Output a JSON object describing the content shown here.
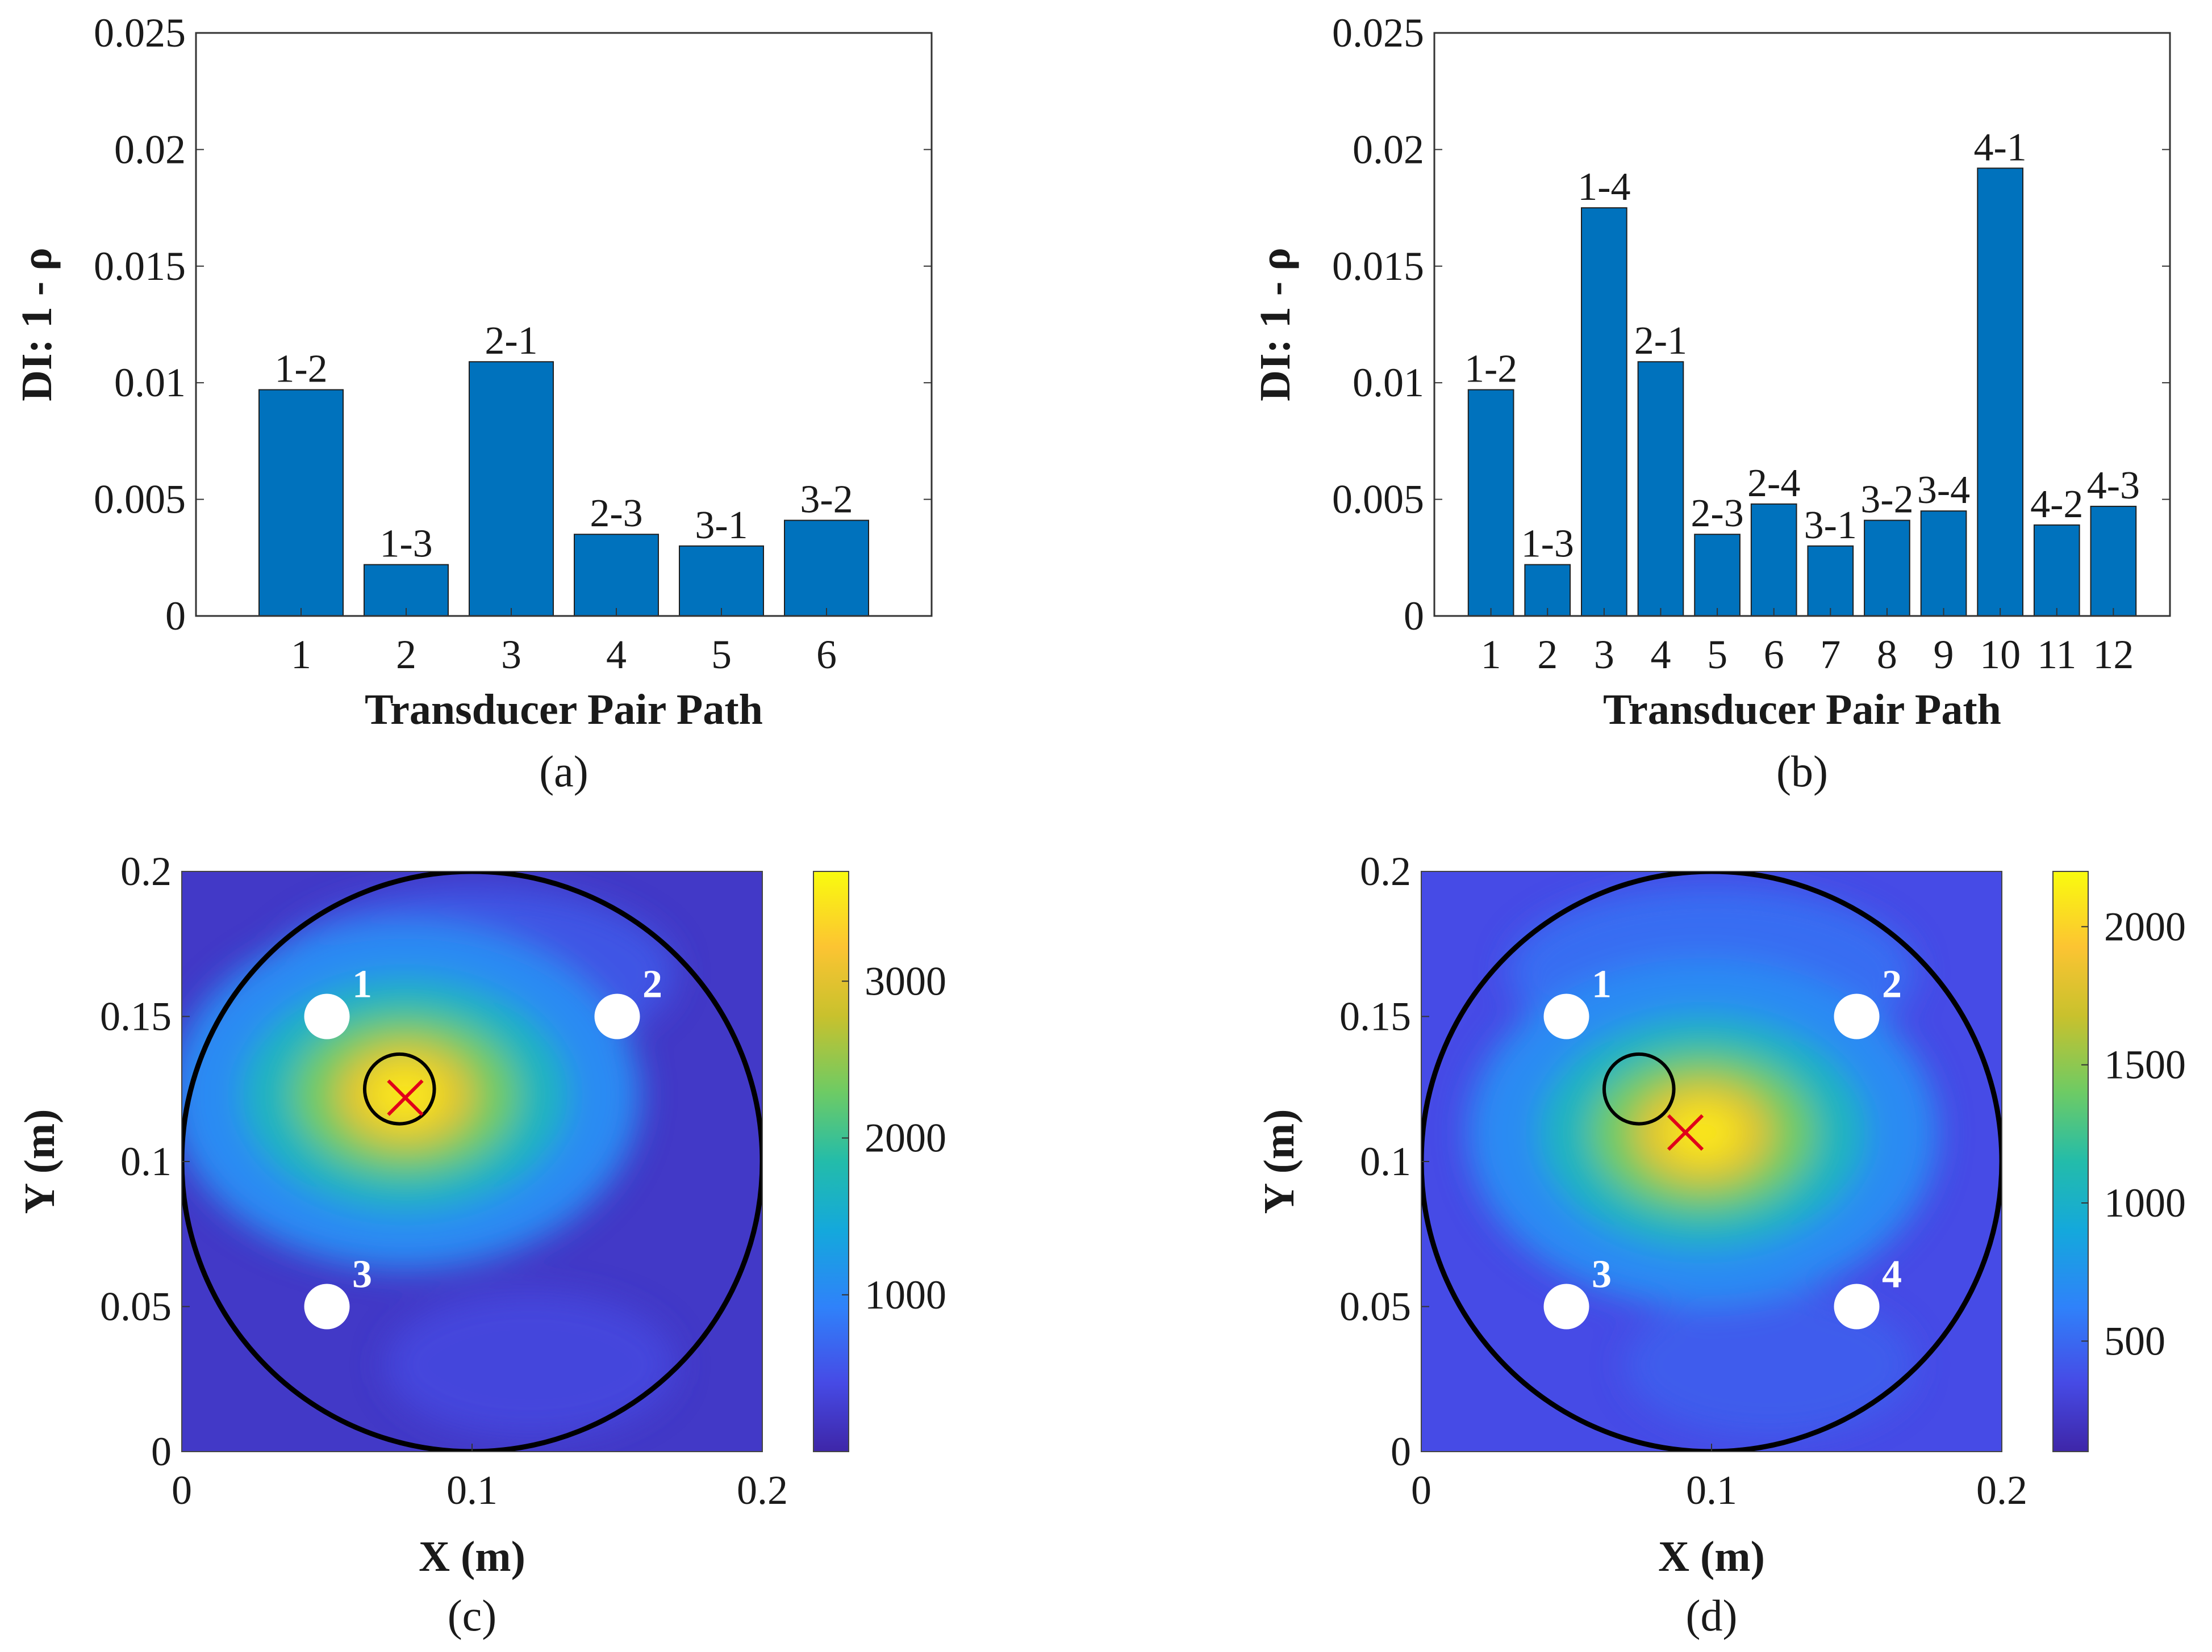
{
  "colors": {
    "bar": "#0072BD",
    "heat_low": "#3e26a8",
    "heat_mid": "#23b7a8",
    "heat_high": "#f9fb0e",
    "marker": "#e0001a",
    "ring": "#000000",
    "transducer": "#ffffff"
  },
  "chart_data": [
    {
      "panel": "a",
      "caption": "(a)",
      "type": "bar",
      "xlabel": "Transducer Pair Path",
      "ylabel": "DI: 1 - ρ",
      "ylim": [
        0,
        0.025
      ],
      "yticks": [
        "0",
        "0.005",
        "0.01",
        "0.015",
        "0.02",
        "0.025"
      ],
      "categories": [
        "1",
        "2",
        "3",
        "4",
        "5",
        "6"
      ],
      "values": [
        0.0097,
        0.0022,
        0.0109,
        0.0035,
        0.003,
        0.0041
      ],
      "bar_labels": [
        "1-2",
        "1-3",
        "2-1",
        "2-3",
        "3-1",
        "3-2"
      ]
    },
    {
      "panel": "b",
      "caption": "(b)",
      "type": "bar",
      "xlabel": "Transducer Pair Path",
      "ylabel": "DI: 1 - ρ",
      "ylim": [
        0,
        0.025
      ],
      "yticks": [
        "0",
        "0.005",
        "0.01",
        "0.015",
        "0.02",
        "0.025"
      ],
      "categories": [
        "1",
        "2",
        "3",
        "4",
        "5",
        "6",
        "7",
        "8",
        "9",
        "10",
        "11",
        "12"
      ],
      "values": [
        0.0097,
        0.0022,
        0.0175,
        0.0109,
        0.0035,
        0.0048,
        0.003,
        0.0041,
        0.0045,
        0.0192,
        0.0039,
        0.0047
      ],
      "bar_labels": [
        "1-2",
        "1-3",
        "1-4",
        "2-1",
        "2-3",
        "2-4",
        "3-1",
        "3-2",
        "3-4",
        "4-1",
        "4-2",
        "4-3"
      ]
    },
    {
      "panel": "c",
      "caption": "(c)",
      "type": "heatmap",
      "xlabel": "X (m)",
      "ylabel": "Y (m)",
      "xlim": [
        0,
        0.2
      ],
      "ylim": [
        0,
        0.2
      ],
      "xticks": [
        "0",
        "0.1",
        "0.2"
      ],
      "yticks": [
        "0",
        "0.05",
        "0.1",
        "0.15",
        "0.2"
      ],
      "colorbar": {
        "range": [
          0,
          3700
        ],
        "ticks": [
          "1000",
          "2000",
          "3000"
        ],
        "tick_values": [
          1000,
          2000,
          3000
        ]
      },
      "plate_circle": {
        "cx": 0.1,
        "cy": 0.1,
        "r": 0.1
      },
      "transducers": [
        {
          "label": "1",
          "x": 0.05,
          "y": 0.15
        },
        {
          "label": "2",
          "x": 0.15,
          "y": 0.15
        },
        {
          "label": "3",
          "x": 0.05,
          "y": 0.05
        }
      ],
      "actual_damage": {
        "x": 0.075,
        "y": 0.125,
        "r": 0.012
      },
      "estimated_damage": {
        "x": 0.077,
        "y": 0.122
      },
      "hotspot": {
        "x": 0.077,
        "y": 0.123,
        "peak": 3700
      }
    },
    {
      "panel": "d",
      "caption": "(d)",
      "type": "heatmap",
      "xlabel": "X (m)",
      "ylabel": "Y (m)",
      "xlim": [
        0,
        0.2
      ],
      "ylim": [
        0,
        0.2
      ],
      "xticks": [
        "0",
        "0.1",
        "0.2"
      ],
      "yticks": [
        "0",
        "0.05",
        "0.1",
        "0.15",
        "0.2"
      ],
      "colorbar": {
        "range": [
          100,
          2200
        ],
        "ticks": [
          "500",
          "1000",
          "1500",
          "2000"
        ],
        "tick_values": [
          500,
          1000,
          1500,
          2000
        ]
      },
      "plate_circle": {
        "cx": 0.1,
        "cy": 0.1,
        "r": 0.1
      },
      "transducers": [
        {
          "label": "1",
          "x": 0.05,
          "y": 0.15
        },
        {
          "label": "2",
          "x": 0.15,
          "y": 0.15
        },
        {
          "label": "3",
          "x": 0.05,
          "y": 0.05
        },
        {
          "label": "4",
          "x": 0.15,
          "y": 0.05
        }
      ],
      "actual_damage": {
        "x": 0.075,
        "y": 0.125,
        "r": 0.012
      },
      "estimated_damage": {
        "x": 0.091,
        "y": 0.11
      },
      "hotspot": {
        "x": 0.097,
        "y": 0.11,
        "peak": 2200
      }
    }
  ]
}
